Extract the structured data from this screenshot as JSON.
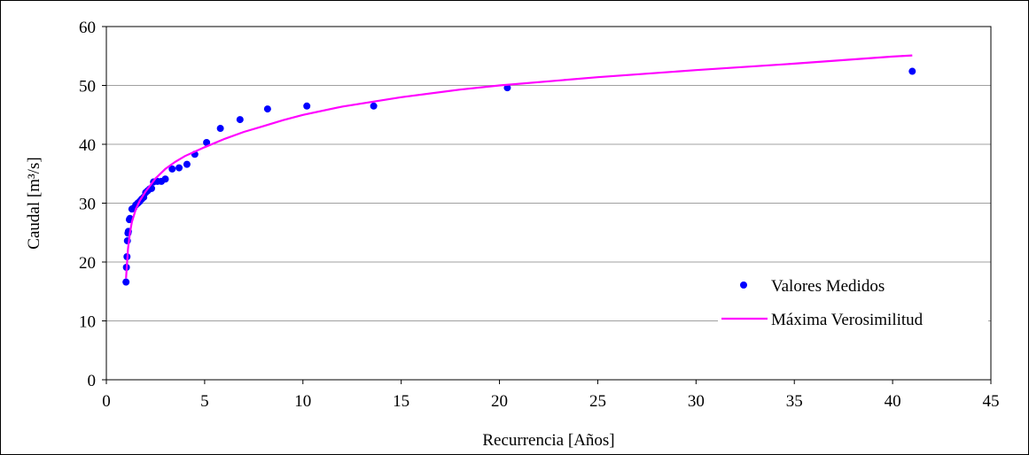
{
  "chart_data": {
    "type": "scatter",
    "xlabel": "Recurrencia [Años]",
    "ylabel": "Caudal [m³/s]",
    "xlim": [
      0,
      45
    ],
    "ylim": [
      0,
      60
    ],
    "x_ticks": [
      0,
      5,
      10,
      15,
      20,
      25,
      30,
      35,
      40,
      45
    ],
    "y_ticks": [
      0,
      10,
      20,
      30,
      40,
      50,
      60
    ],
    "grid": "horizontal",
    "legend_position": "bottom-right",
    "series": [
      {
        "name": "Valores Medidos",
        "kind": "scatter",
        "color": "#0000ff",
        "points": [
          [
            1.0,
            16.6
          ],
          [
            1.02,
            19.1
          ],
          [
            1.05,
            20.9
          ],
          [
            1.07,
            23.6
          ],
          [
            1.1,
            24.9
          ],
          [
            1.12,
            25.2
          ],
          [
            1.17,
            27.2
          ],
          [
            1.2,
            27.4
          ],
          [
            1.3,
            29.0
          ],
          [
            1.4,
            29.2
          ],
          [
            1.5,
            29.7
          ],
          [
            1.6,
            30.0
          ],
          [
            1.7,
            30.3
          ],
          [
            1.8,
            30.7
          ],
          [
            1.9,
            31.0
          ],
          [
            2.0,
            31.8
          ],
          [
            2.1,
            32.1
          ],
          [
            2.2,
            32.4
          ],
          [
            2.3,
            32.5
          ],
          [
            2.4,
            33.6
          ],
          [
            2.6,
            33.7
          ],
          [
            2.8,
            33.7
          ],
          [
            3.0,
            34.1
          ],
          [
            3.35,
            35.8
          ],
          [
            3.7,
            36.0
          ],
          [
            4.1,
            36.6
          ],
          [
            4.5,
            38.3
          ],
          [
            5.1,
            40.3
          ],
          [
            5.8,
            42.7
          ],
          [
            6.8,
            44.2
          ],
          [
            8.2,
            46.0
          ],
          [
            10.2,
            46.5
          ],
          [
            13.6,
            46.5
          ],
          [
            20.4,
            49.6
          ],
          [
            41.0,
            52.4
          ]
        ]
      },
      {
        "name": "Máxima Verosimilitud",
        "kind": "line",
        "color": "#ff00ff",
        "points": [
          [
            1.0,
            17.2
          ],
          [
            1.1,
            22.2
          ],
          [
            1.2,
            25.0
          ],
          [
            1.3,
            26.8
          ],
          [
            1.5,
            29.0
          ],
          [
            1.7,
            30.4
          ],
          [
            2.0,
            32.0
          ],
          [
            2.5,
            34.2
          ],
          [
            3.0,
            35.8
          ],
          [
            3.5,
            37.0
          ],
          [
            4.0,
            38.0
          ],
          [
            5.0,
            39.5
          ],
          [
            6.0,
            40.9
          ],
          [
            7.0,
            42.1
          ],
          [
            8.0,
            43.1
          ],
          [
            9.0,
            44.1
          ],
          [
            10.0,
            45.0
          ],
          [
            12.0,
            46.4
          ],
          [
            15.0,
            48.0
          ],
          [
            18.0,
            49.3
          ],
          [
            20.0,
            50.0
          ],
          [
            25.0,
            51.4
          ],
          [
            30.0,
            52.6
          ],
          [
            35.0,
            53.7
          ],
          [
            40.0,
            54.9
          ],
          [
            41.0,
            55.1
          ]
        ]
      }
    ]
  }
}
